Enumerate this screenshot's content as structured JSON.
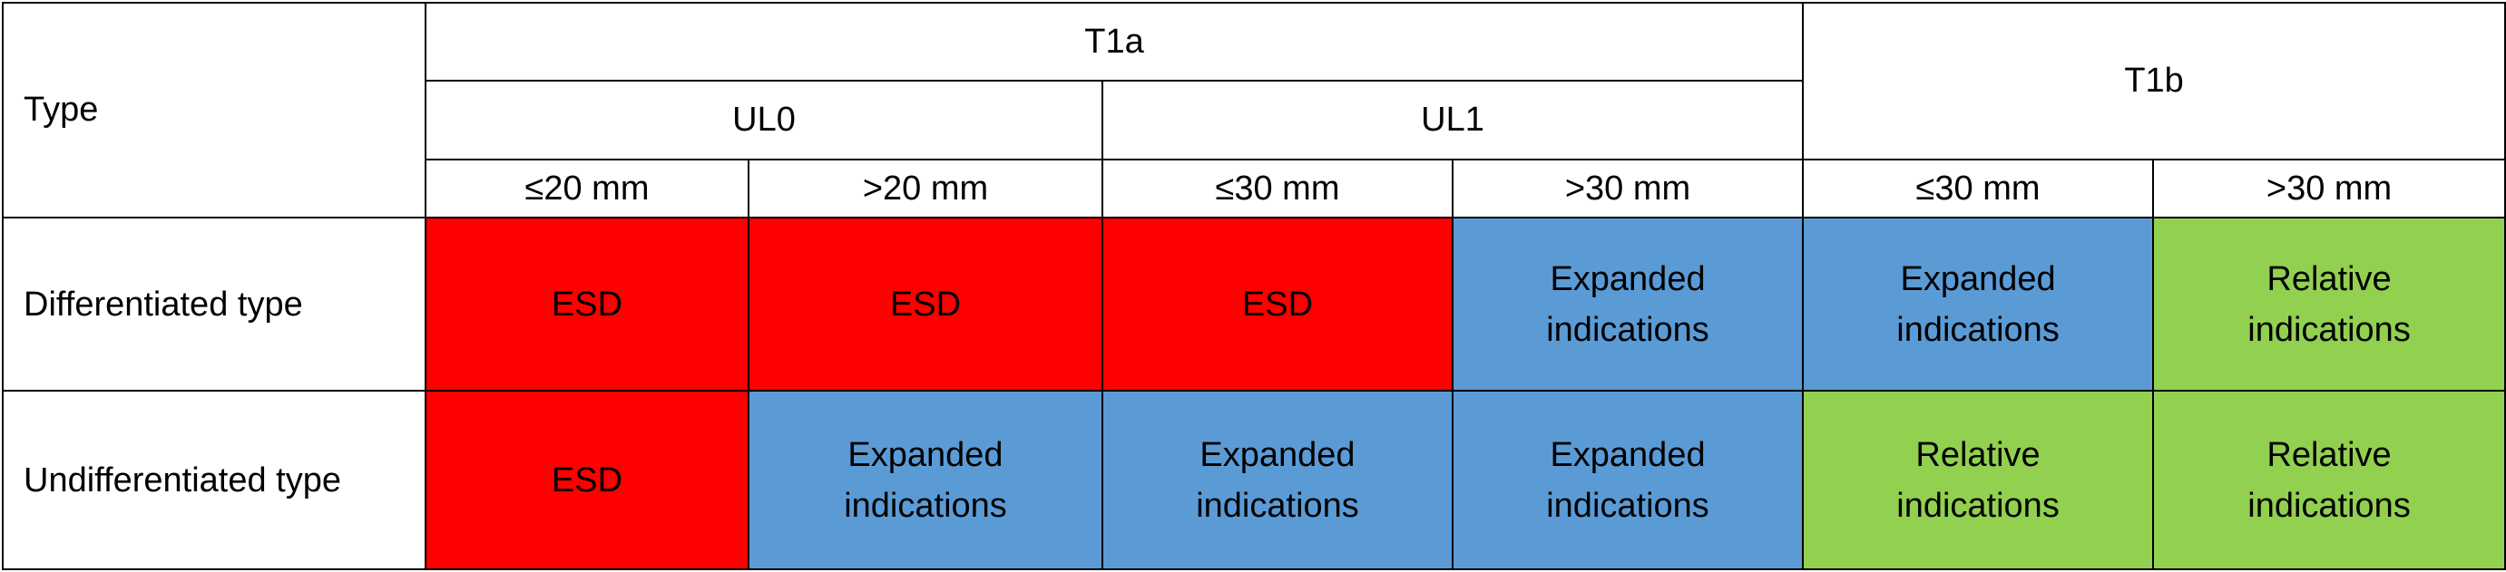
{
  "header": {
    "type_label": "Type",
    "t1a": "T1a",
    "t1b": "T1b",
    "ul0": "UL0",
    "ul1": "UL1",
    "sizes": [
      "≤20 mm",
      ">20 mm",
      "≤30 mm",
      ">30 mm",
      "≤30 mm",
      ">30 mm"
    ]
  },
  "rows": [
    {
      "label": "Differentiated type",
      "cells": [
        {
          "line1": "ESD",
          "line2": "",
          "color": "#ff0000"
        },
        {
          "line1": "ESD",
          "line2": "",
          "color": "#ff0000"
        },
        {
          "line1": "ESD",
          "line2": "",
          "color": "#ff0000"
        },
        {
          "line1": "Expanded",
          "line2": "indications",
          "color": "#5b9bd5"
        },
        {
          "line1": "Expanded",
          "line2": "indications",
          "color": "#5b9bd5"
        },
        {
          "line1": "Relative",
          "line2": "indications",
          "color": "#92d050"
        }
      ]
    },
    {
      "label": "Undifferentiated type",
      "cells": [
        {
          "line1": "ESD",
          "line2": "",
          "color": "#ff0000"
        },
        {
          "line1": "Expanded",
          "line2": "indications",
          "color": "#5b9bd5"
        },
        {
          "line1": "Expanded",
          "line2": "indications",
          "color": "#5b9bd5"
        },
        {
          "line1": "Expanded",
          "line2": "indications",
          "color": "#5b9bd5"
        },
        {
          "line1": "Relative",
          "line2": "indications",
          "color": "#92d050"
        },
        {
          "line1": "Relative",
          "line2": "indications",
          "color": "#92d050"
        }
      ]
    }
  ],
  "colors": {
    "esd": "#ff0000",
    "expanded": "#5b9bd5",
    "relative": "#92d050"
  }
}
